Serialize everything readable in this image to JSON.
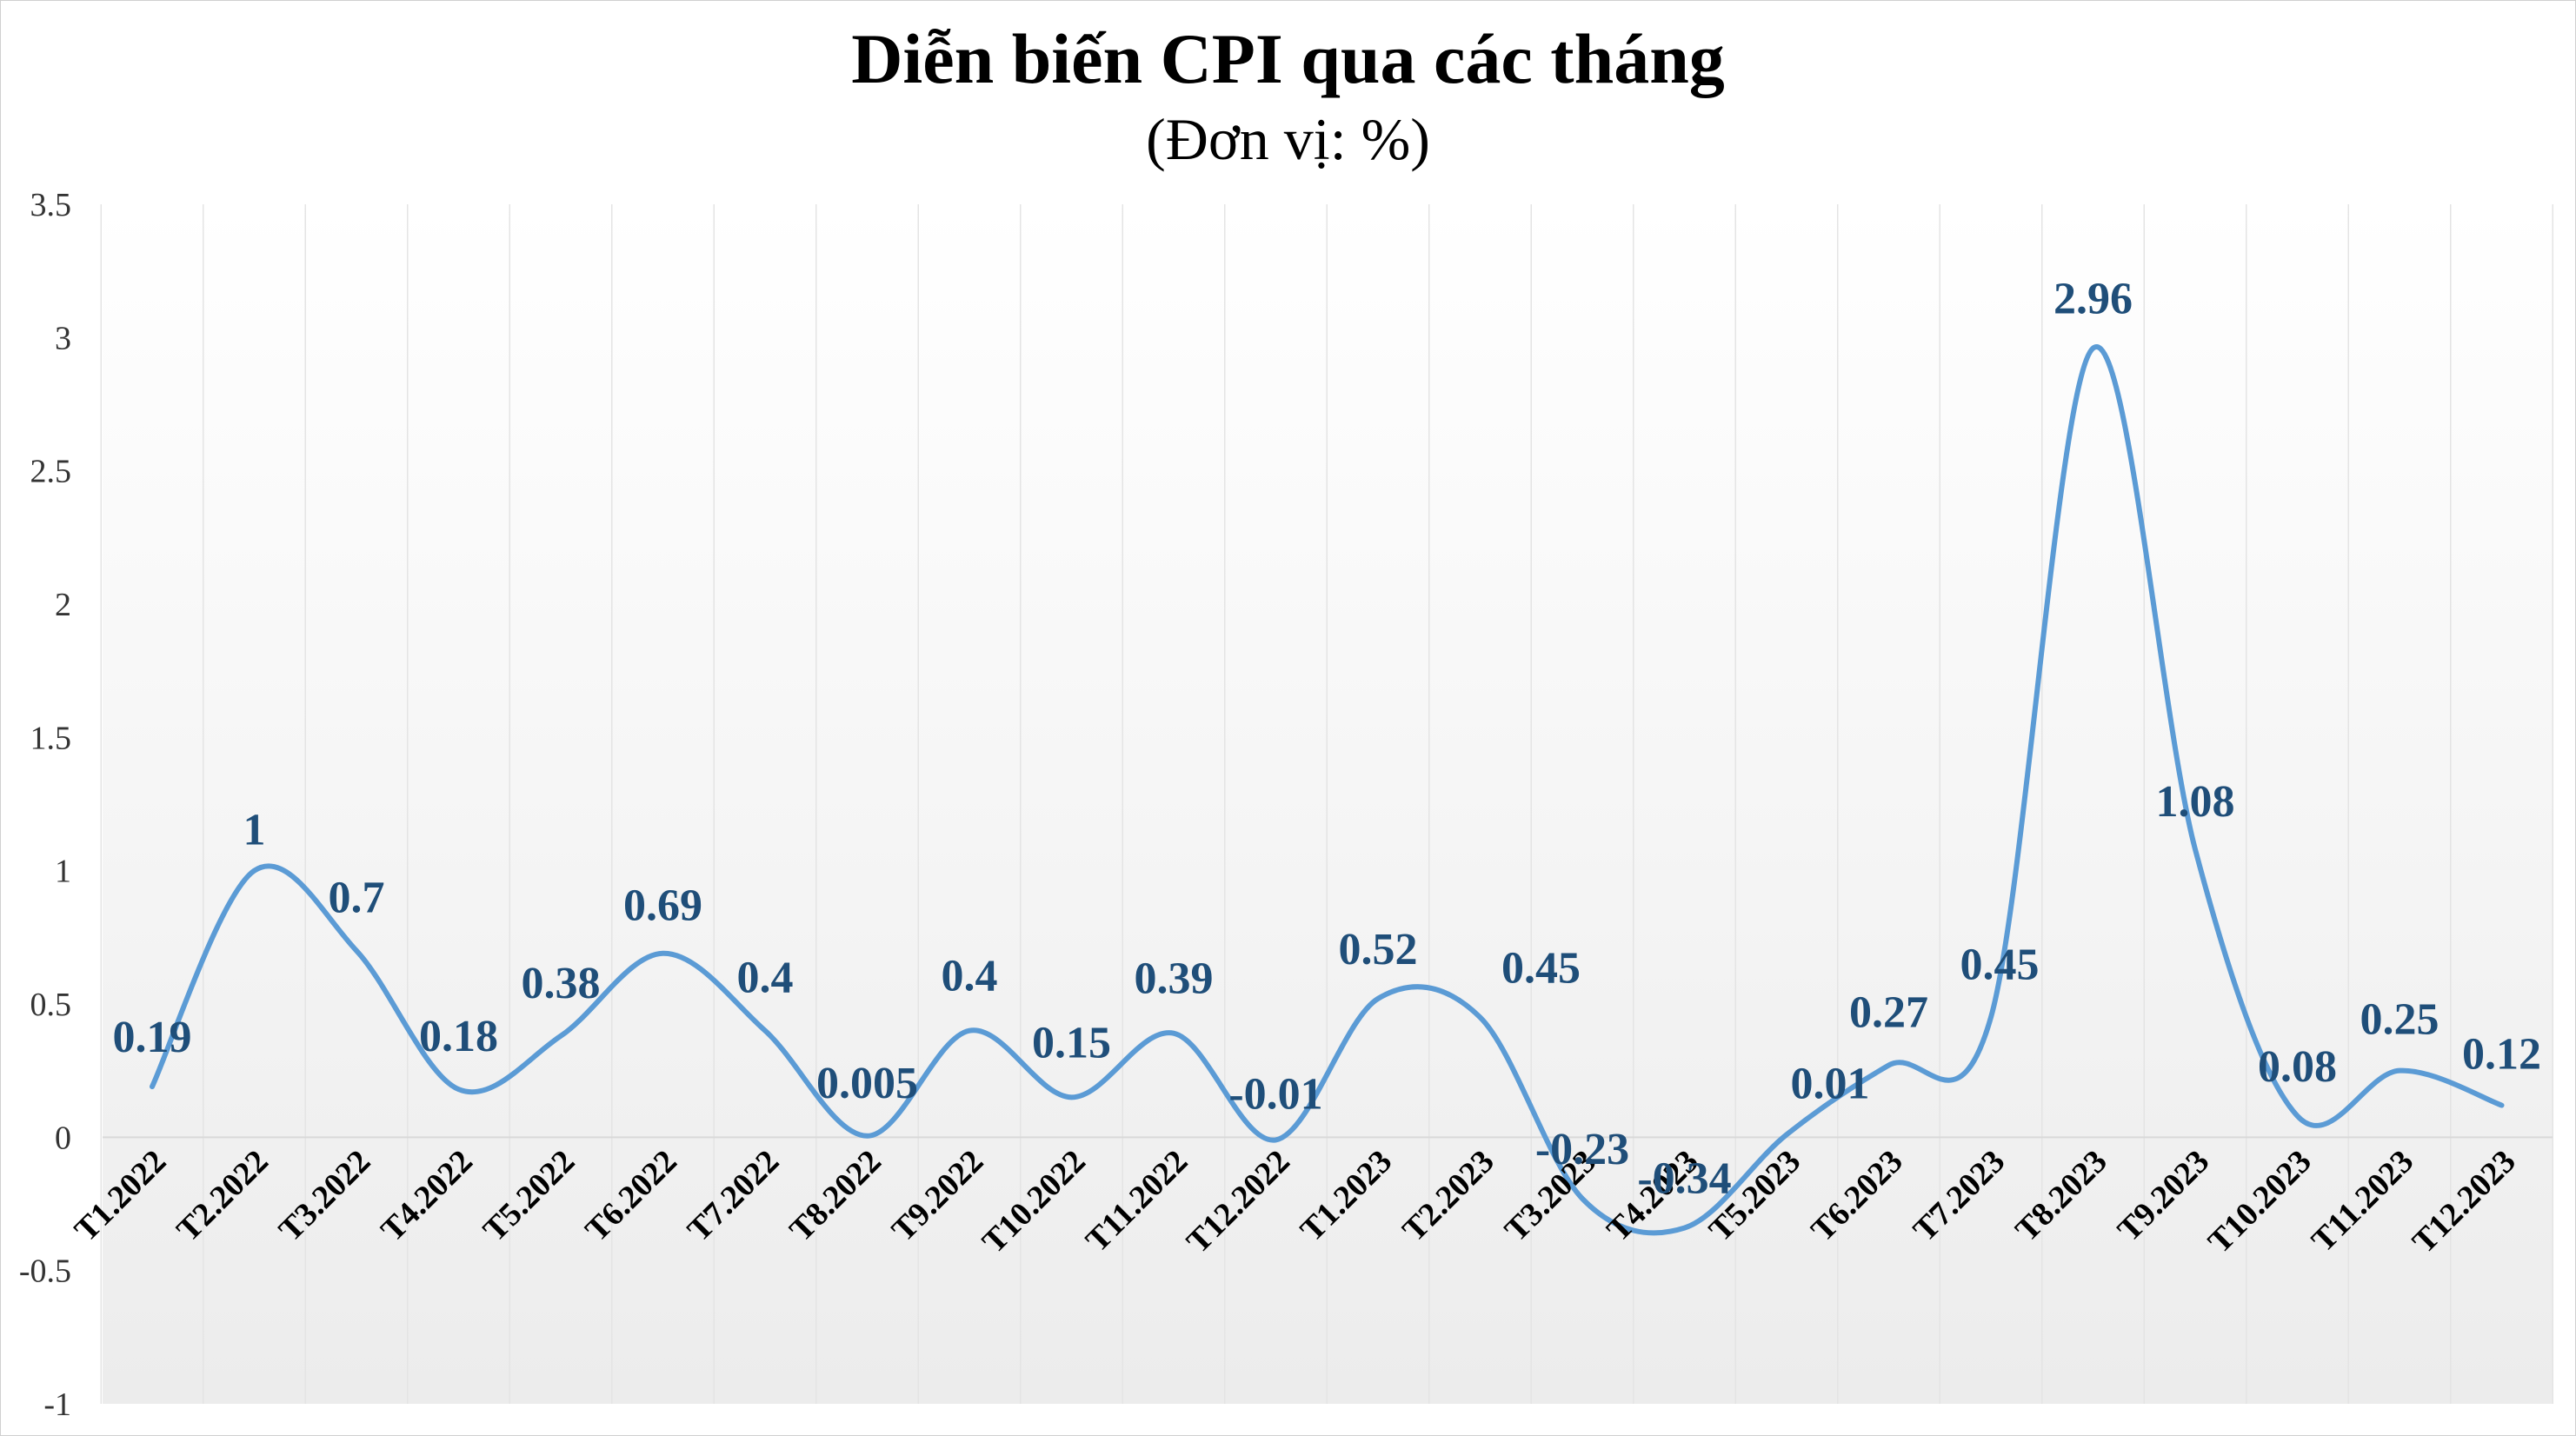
{
  "chart_data": {
    "type": "line",
    "title": "Diễn biến CPI qua các tháng",
    "subtitle": "(Đơn vị: %)",
    "xlabel": "",
    "ylabel": "",
    "ylim": [
      -1,
      3.5
    ],
    "yticks": [
      -1,
      -0.5,
      0,
      0.5,
      1,
      1.5,
      2,
      2.5,
      3,
      3.5
    ],
    "ytick_labels": [
      "-1",
      "-0.5",
      "0",
      "0.5",
      "1",
      "1.5",
      "2",
      "2.5",
      "3",
      "3.5"
    ],
    "grid": true,
    "smooth": true,
    "line_color": "#5b9bd5",
    "label_color": "#1f4e79",
    "categories": [
      "T1.2022",
      "T2.2022",
      "T3.2022",
      "T4.2022",
      "T5.2022",
      "T6.2022",
      "T7.2022",
      "T8.2022",
      "T9.2022",
      "T10.2022",
      "T11.2022",
      "T12.2022",
      "T1.2023",
      "T2.2023",
      "T3.2023",
      "T4.2023",
      "T5.2023",
      "T6.2023",
      "T7.2023",
      "T8.2023",
      "T9.2023",
      "T10.2023",
      "T11.2023",
      "T12.2023"
    ],
    "values": [
      0.19,
      1,
      0.7,
      0.18,
      0.38,
      0.69,
      0.4,
      0.005,
      0.4,
      0.15,
      0.39,
      -0.01,
      0.52,
      0.45,
      -0.23,
      -0.34,
      0.01,
      0.27,
      0.45,
      2.96,
      1.08,
      0.08,
      0.25,
      0.12
    ],
    "value_labels": [
      "0.19",
      "1",
      "0.7",
      "0.18",
      "0.38",
      "0.69",
      "0.4",
      "0.005",
      "0.4",
      "0.15",
      "0.39",
      "-0.01",
      "0.52",
      "0.45",
      "-0.23",
      "-0.34",
      "0.01",
      "0.27",
      "0.45",
      "2.96",
      "1.08",
      "0.08",
      "0.25",
      "0.12"
    ]
  }
}
